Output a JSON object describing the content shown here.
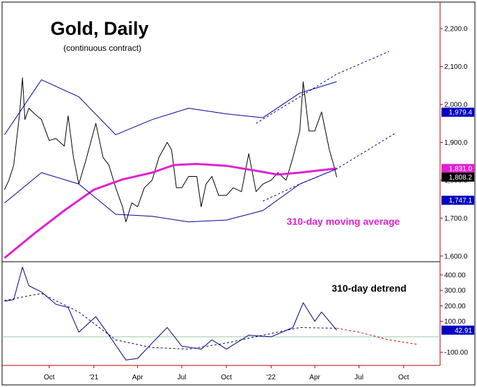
{
  "chart_data": [
    {
      "type": "line",
      "title": "Gold, Daily",
      "subtitle": "(continuous contract)",
      "x_tick_labels": [
        "Oct",
        "'21",
        "Apr",
        "Jul",
        "Oct",
        "'22",
        "Apr",
        "Jul",
        "Oct"
      ],
      "y_tick_labels": [
        "2,200.0",
        "2,100.0",
        "2,000.0",
        "1,900.0",
        "1,800.0",
        "1,700.0",
        "1,600.0"
      ],
      "ylim": [
        1585,
        2270
      ],
      "annotation": "310-day moving average",
      "grid": false,
      "series": [
        {
          "name": "",
          "color": "#000000",
          "x": [
            "2020-07-01",
            "2020-07-10",
            "2020-07-20",
            "2020-08-01",
            "2020-08-07",
            "2020-08-12",
            "2020-08-20",
            "2020-09-01",
            "2020-09-15",
            "2020-10-01",
            "2020-10-15",
            "2020-11-01",
            "2020-11-09",
            "2020-11-20",
            "2020-12-01",
            "2020-12-15",
            "2021-01-05",
            "2021-01-20",
            "2021-02-01",
            "2021-02-15",
            "2021-03-01",
            "2021-03-08",
            "2021-03-20",
            "2021-04-01",
            "2021-04-15",
            "2021-05-01",
            "2021-05-15",
            "2021-06-01",
            "2021-06-10",
            "2021-06-20",
            "2021-07-01",
            "2021-07-15",
            "2021-08-01",
            "2021-08-10",
            "2021-08-20",
            "2021-09-01",
            "2021-09-15",
            "2021-10-01",
            "2021-10-15",
            "2021-11-01",
            "2021-11-16",
            "2021-12-01",
            "2021-12-15",
            "2022-01-01",
            "2022-01-15",
            "2022-02-01",
            "2022-02-15",
            "2022-03-01",
            "2022-03-08",
            "2022-03-20",
            "2022-04-01",
            "2022-04-15",
            "2022-05-01",
            "2022-05-10",
            "2022-05-16"
          ],
          "values": [
            1775,
            1800,
            1840,
            1975,
            2070,
            1960,
            1990,
            1975,
            1960,
            1905,
            1910,
            1890,
            1970,
            1860,
            1790,
            1850,
            1950,
            1860,
            1840,
            1780,
            1730,
            1690,
            1740,
            1730,
            1780,
            1800,
            1860,
            1900,
            1880,
            1780,
            1780,
            1810,
            1810,
            1730,
            1790,
            1810,
            1760,
            1760,
            1780,
            1770,
            1870,
            1770,
            1790,
            1800,
            1820,
            1800,
            1860,
            1930,
            2060,
            1930,
            1930,
            1980,
            1880,
            1840,
            1808
          ]
        },
        {
          "name": "",
          "color": "#e020d0",
          "x": [
            "2020-07-01",
            "2020-09-01",
            "2020-11-01",
            "2021-01-01",
            "2021-03-01",
            "2021-05-01",
            "2021-06-15",
            "2021-08-01",
            "2021-10-01",
            "2021-12-01",
            "2022-01-15",
            "2022-03-01",
            "2022-05-16"
          ],
          "values": [
            1595,
            1660,
            1720,
            1775,
            1802,
            1820,
            1840,
            1843,
            1838,
            1825,
            1815,
            1820,
            1831
          ]
        },
        {
          "name": "",
          "color": "#0000a0",
          "line_style": "solid",
          "x": [
            "2020-07-01",
            "2020-09-15",
            "2020-12-01",
            "2021-02-15",
            "2021-05-01",
            "2021-07-15",
            "2021-10-01",
            "2021-12-15",
            "2022-03-01",
            "2022-05-16"
          ],
          "values": [
            1920,
            2065,
            2020,
            1920,
            1960,
            1990,
            1975,
            1965,
            2030,
            2060
          ]
        },
        {
          "name": "",
          "color": "#0000a0",
          "line_style": "solid",
          "x": [
            "2020-07-01",
            "2020-09-15",
            "2020-12-01",
            "2021-02-15",
            "2021-05-01",
            "2021-07-15",
            "2021-10-01",
            "2021-12-15",
            "2022-03-01",
            "2022-05-16"
          ],
          "values": [
            1740,
            1820,
            1790,
            1710,
            1705,
            1690,
            1695,
            1720,
            1790,
            1830
          ]
        },
        {
          "name": "",
          "color": "#0000a0",
          "line_style": "dashed",
          "x": [
            "2021-12-01",
            "2022-03-01",
            "2022-05-16",
            "2022-09-01"
          ],
          "values": [
            1950,
            2020,
            2080,
            2140
          ]
        },
        {
          "name": "",
          "color": "#0000a0",
          "line_style": "dashed",
          "x": [
            "2021-12-15",
            "2022-03-01",
            "2022-05-16",
            "2022-09-15"
          ],
          "values": [
            1745,
            1790,
            1830,
            1925
          ]
        }
      ],
      "value_tags": [
        {
          "label": "1,979.4",
          "bg": "#0000c0",
          "fg": "#ffffff",
          "value": 1979.4
        },
        {
          "label": "1,831.0",
          "bg": "#e020d0",
          "fg": "#ffffff",
          "value": 1831.0
        },
        {
          "label": "1,808.2",
          "bg": "#000000",
          "fg": "#ffffff",
          "value": 1808.2
        },
        {
          "label": "1,747.1",
          "bg": "#0000c0",
          "fg": "#ffffff",
          "value": 1747.1
        }
      ]
    },
    {
      "type": "line",
      "title": "",
      "annotation": "310-day detrend",
      "y_tick_labels": [
        "400.00",
        "300.00",
        "200.00",
        "100.00",
        "-100.00"
      ],
      "ylim": [
        -185,
        485
      ],
      "zero_line": true,
      "grid": false,
      "series": [
        {
          "name": "",
          "color": "#000080",
          "x": [
            "2020-07-01",
            "2020-07-20",
            "2020-08-07",
            "2020-08-20",
            "2020-09-15",
            "2020-10-15",
            "2020-11-09",
            "2020-12-01",
            "2021-01-05",
            "2021-02-01",
            "2021-03-08",
            "2021-04-01",
            "2021-05-01",
            "2021-06-01",
            "2021-07-01",
            "2021-08-10",
            "2021-09-01",
            "2021-10-01",
            "2021-11-16",
            "2022-01-01",
            "2022-02-15",
            "2022-03-08",
            "2022-04-01",
            "2022-04-15",
            "2022-05-16"
          ],
          "values": [
            230,
            240,
            450,
            330,
            290,
            210,
            190,
            30,
            130,
            10,
            -150,
            -140,
            -40,
            60,
            -60,
            -80,
            -20,
            -80,
            10,
            0,
            60,
            220,
            100,
            160,
            42.91
          ]
        },
        {
          "name": "",
          "color": "#000080",
          "line_style": "dashed",
          "x": [
            "2020-07-01",
            "2020-09-15",
            "2020-12-01",
            "2021-02-15",
            "2021-05-01",
            "2021-07-15",
            "2021-10-01",
            "2021-12-15",
            "2022-03-01",
            "2022-05-16"
          ],
          "values": [
            235,
            280,
            160,
            -20,
            -70,
            -80,
            -40,
            10,
            60,
            55
          ]
        },
        {
          "name": "",
          "color": "#c00000",
          "line_style": "dashed",
          "x": [
            "2022-05-16",
            "2022-07-01",
            "2022-09-01",
            "2022-11-01"
          ],
          "values": [
            55,
            30,
            -20,
            -50
          ]
        }
      ],
      "value_tags": [
        {
          "label": "42.91",
          "bg": "#0000c0",
          "fg": "#ffffff",
          "value": 42.91
        }
      ]
    }
  ]
}
